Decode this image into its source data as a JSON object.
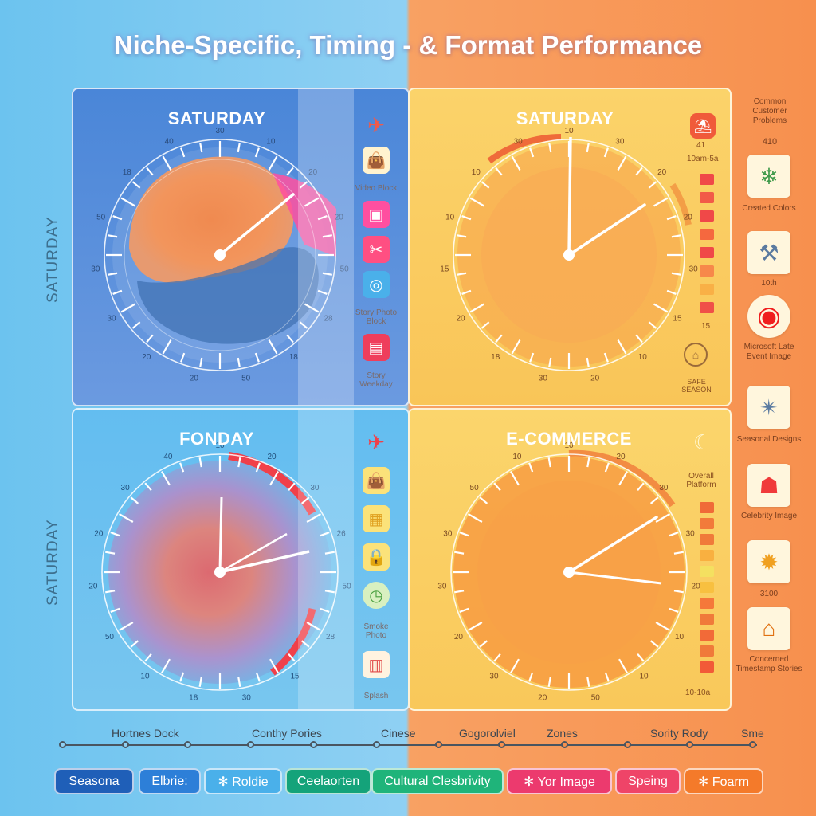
{
  "title": "Niche-Specific, Timing - & Format Performance",
  "vertical_labels": [
    "SATURDAY",
    "SATURDAY"
  ],
  "panels": [
    {
      "title": "SATURDAY",
      "ticks": [
        "30",
        "10",
        "20",
        "20",
        "50",
        "28",
        "18",
        "50",
        "20",
        "20",
        "30",
        "30",
        "50",
        "18",
        "40"
      ]
    },
    {
      "title": "SATURDAY",
      "ticks": [
        "10",
        "30",
        "20",
        "20",
        "30",
        "15",
        "10",
        "20",
        "30",
        "18",
        "20",
        "15",
        "10",
        "10",
        "30"
      ]
    },
    {
      "title": "FONDAY",
      "ticks": [
        "10",
        "20",
        "30",
        "26",
        "50",
        "28",
        "15",
        "30",
        "18",
        "10",
        "50",
        "20",
        "20",
        "30",
        "40"
      ]
    },
    {
      "title": "E-COMMERCE",
      "ticks": [
        "10",
        "20",
        "30",
        "30",
        "20",
        "10",
        "10",
        "50",
        "20",
        "30",
        "20",
        "30",
        "30",
        "50",
        "10"
      ]
    }
  ],
  "left_icons": [
    {
      "name": "plane-icon",
      "label": ""
    },
    {
      "name": "bag-icon",
      "label": "Video Block"
    },
    {
      "name": "image-icon",
      "label": ""
    },
    {
      "name": "ticket-icon",
      "label": ""
    },
    {
      "name": "camera-icon",
      "label": "Story Photo Block"
    },
    {
      "name": "photo-icon",
      "label": "Story Weekday"
    }
  ],
  "left_icons_bottom": [
    {
      "name": "plane-icon",
      "label": ""
    },
    {
      "name": "bag-icon",
      "label": ""
    },
    {
      "name": "calendar-icon",
      "label": ""
    },
    {
      "name": "lock-icon",
      "label": ""
    },
    {
      "name": "clock-icon",
      "label": "Smoke Photo"
    },
    {
      "name": "popcorn-icon",
      "label": "Splash"
    }
  ],
  "scale_top": {
    "top_label": "41",
    "sub_label": "10am-5a",
    "bottom_label": "15"
  },
  "scale_bottom": {
    "top_label": "Overall Platform",
    "bottom_label": "10-10a"
  },
  "top_right_badge": "⛱",
  "lock_caption": "SAFE SEASON",
  "moon": "☾",
  "right_column": {
    "header": "Common Customer Problems",
    "header_value": "410",
    "items": [
      {
        "icon": "snowflake-icon",
        "glyph": "❄",
        "label": "Created Colors"
      },
      {
        "icon": "tools-icon",
        "glyph": "⚒",
        "label": "10th"
      },
      {
        "icon": "target-icon",
        "glyph": "◉",
        "label": "Microsoft Late Event Image"
      },
      {
        "icon": "star-icon",
        "glyph": "✴",
        "label": "Seasonal Designs"
      },
      {
        "icon": "gift-icon",
        "glyph": "☗",
        "label": "Celebrity Image"
      },
      {
        "icon": "sparkle-icon",
        "glyph": "✹",
        "label": "3100"
      },
      {
        "icon": "house-icon",
        "glyph": "⌂",
        "label": "Concerned Timestamp Stories"
      }
    ]
  },
  "timeline": {
    "labels": [
      "Hortnes Dock",
      "Conthy Pories",
      "Cinese",
      "Gogorolviel",
      "Zones",
      "Sority Rody",
      "Sme"
    ],
    "ticks": 12
  },
  "pills": [
    {
      "label": "Seasona",
      "color": "#1f5fb8"
    },
    {
      "label": "Elbrie:",
      "color": "#2d7fd8"
    },
    {
      "label": "✻ Roldie",
      "color": "#4ab0ea"
    },
    {
      "label": "Ceelaorten",
      "color": "#14a37a"
    },
    {
      "label": "Cultural Clesbrivity",
      "color": "#1fb47a"
    },
    {
      "label": "✻ Yor Image",
      "color": "#ec3a6e"
    },
    {
      "label": "Speing",
      "color": "#ef4468"
    },
    {
      "label": "✻ Foarm",
      "color": "#f47a2a"
    }
  ],
  "colors": {
    "blue_bg": "#6cc3ef",
    "orange_bg": "#f7904e",
    "accent_pink": "#ff4fa0",
    "accent_red": "#f0404a"
  }
}
